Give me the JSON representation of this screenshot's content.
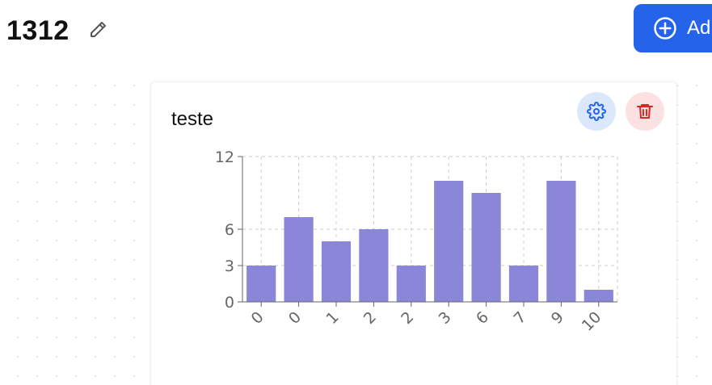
{
  "header": {
    "title": "1312",
    "edit_icon": "pencil-icon",
    "add_label": "Ad",
    "add_icon": "plus-circle-icon"
  },
  "widget": {
    "title": "teste",
    "settings_icon": "gear-icon",
    "delete_icon": "trash-icon",
    "settings_color": "#2563eb",
    "delete_color": "#dc2626"
  },
  "colors": {
    "accent": "#2563eb",
    "bar": "#8a86d8"
  },
  "chart_data": {
    "type": "bar",
    "categories": [
      "0",
      "0",
      "1",
      "2",
      "2",
      "3",
      "6",
      "7",
      "9",
      "10"
    ],
    "values": [
      3,
      7,
      5,
      6,
      3,
      10,
      9,
      3,
      10,
      1
    ],
    "yticks": [
      0,
      3,
      6,
      12
    ],
    "ylim": [
      0,
      12
    ],
    "grid": true
  }
}
